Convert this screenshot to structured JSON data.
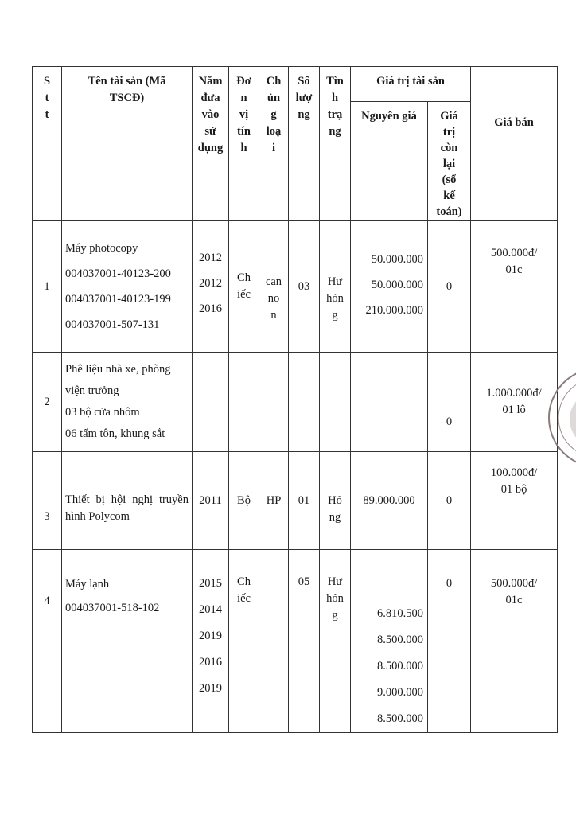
{
  "table": {
    "headers": {
      "stt": "S\nt\nt",
      "name": "Tên tài sản (Mã\nTSCĐ)",
      "year": "Năm\nđưa\nvào\nsử\ndụng",
      "unit": "Đơ\nn\nvị\ntín\nh",
      "type": "Ch\nủn\ng\nloạ\ni",
      "qty": "Số\nlượ\nng",
      "status": "Tìn\nh\ntrạ\nng",
      "value_group": "Giá trị tài sản",
      "original": "Nguyên giá",
      "remaining": "Giá\ntrị\ncòn\nlại\n(sổ\nkế\ntoán)",
      "price": "Giá bán"
    },
    "rows": [
      {
        "stt": "1",
        "name": "Máy photocopy\n004037001-40123-200\n004037001-40123-199\n004037001-507-131",
        "year": "2012\n2012\n2016",
        "unit": "Ch\niếc",
        "type": "can\nno\nn",
        "qty": "03",
        "status": "Hư\nhỏn\ng",
        "original": "50.000.000\n50.000.000\n210.000.000",
        "remaining": "0",
        "price": "500.000đ/\n01c"
      },
      {
        "stt": "2",
        "name": "Phê liệu nhà xe, phòng\nviện trưởng\n03 bộ cửa nhôm\n06 tấm tôn, khung sắt",
        "year": "",
        "unit": "",
        "type": "",
        "qty": "",
        "status": "",
        "original": "",
        "remaining": "0",
        "price": "1.000.000đ/\n01 lô"
      },
      {
        "stt": "3",
        "name": "Thiết bị hội nghị truyền hình Polycom",
        "year": "2011",
        "unit": "Bộ",
        "type": "HP",
        "qty": "01",
        "status": "Hỏ\nng",
        "original": "89.000.000",
        "remaining": "0",
        "price": "100.000đ/\n01 bộ"
      },
      {
        "stt": "4",
        "name": "Máy lạnh\n004037001-518-102",
        "year": "2015\n2014\n2019\n2016\n2019",
        "unit": "Ch\niếc",
        "type": "",
        "qty": "05",
        "status": "Hư\nhỏn\ng",
        "original": "6.810.500\n8.500.000\n8.500.000\n9.000.000\n8.500.000",
        "remaining": "0",
        "price": "500.000đ/\n01c"
      }
    ]
  },
  "stamp": {
    "text": "ẤN T ... ★ V",
    "color": "#7a6a6a"
  }
}
